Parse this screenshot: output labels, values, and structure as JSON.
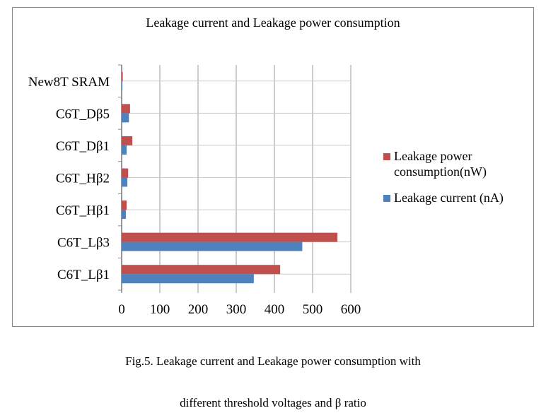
{
  "chart_data": {
    "type": "bar",
    "orientation": "horizontal",
    "title": "Leakage current  and Leakage power consumption",
    "categories": [
      "C6T_Lβ1",
      "C6T_Lβ3",
      "C6T_Hβ1",
      "C6T_Hβ2",
      "C6T_Dβ1",
      "C6T_Dβ5",
      "New8T SRAM"
    ],
    "series": [
      {
        "name": "Leakage current (nA)",
        "color": "#4f81bd",
        "values": [
          346,
          473,
          11,
          15,
          13,
          19,
          2
        ]
      },
      {
        "name": "Leakage power consumption(nW)",
        "color": "#c0504d",
        "values": [
          415,
          565,
          13,
          17,
          28,
          22,
          3
        ]
      }
    ],
    "xlim": [
      0,
      600
    ],
    "xticks": [
      "0",
      "100",
      "200",
      "300",
      "400",
      "500",
      "600"
    ],
    "grid": true,
    "legend": "right"
  },
  "legend": {
    "power_line1": "Leakage power",
    "power_line2": "consumption(nW)",
    "current": "Leakage current (nA)"
  },
  "caption": {
    "line1": "Fig.5. Leakage current and Leakage power consumption with",
    "line2": "different threshold voltages and β ratio"
  }
}
